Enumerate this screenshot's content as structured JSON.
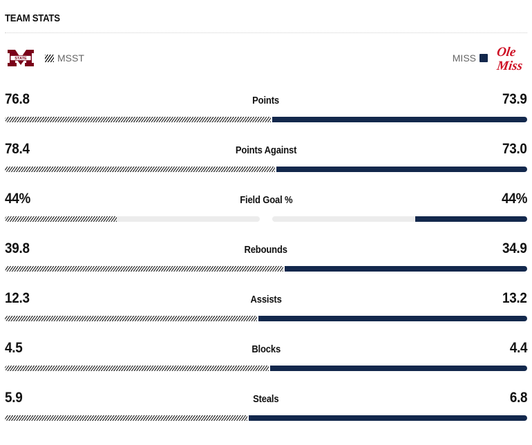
{
  "section_title": "TEAM STATS",
  "away": {
    "abbr": "MSST",
    "logo_icon": "msst-logo-icon",
    "color": "#7a0019"
  },
  "home": {
    "abbr": "MISS",
    "logo_icon": "ole-miss-logo-icon",
    "logo_text_1": "Ole",
    "logo_text_2": "Miss",
    "color": "#13284c",
    "logo_red": "#ce1126"
  },
  "stats": [
    {
      "label": "Points",
      "away": "76.8",
      "home": "73.9",
      "split": false
    },
    {
      "label": "Points Against",
      "away": "78.4",
      "home": "73.0",
      "split": false
    },
    {
      "label": "Field Goal %",
      "away": "44%",
      "home": "44%",
      "split": true,
      "away_pct": 0.44,
      "home_pct": 0.44
    },
    {
      "label": "Rebounds",
      "away": "39.8",
      "home": "34.9",
      "split": false
    },
    {
      "label": "Assists",
      "away": "12.3",
      "home": "13.2",
      "split": false
    },
    {
      "label": "Blocks",
      "away": "4.5",
      "home": "4.4",
      "split": false
    },
    {
      "label": "Steals",
      "away": "5.9",
      "home": "6.8",
      "split": false
    }
  ]
}
